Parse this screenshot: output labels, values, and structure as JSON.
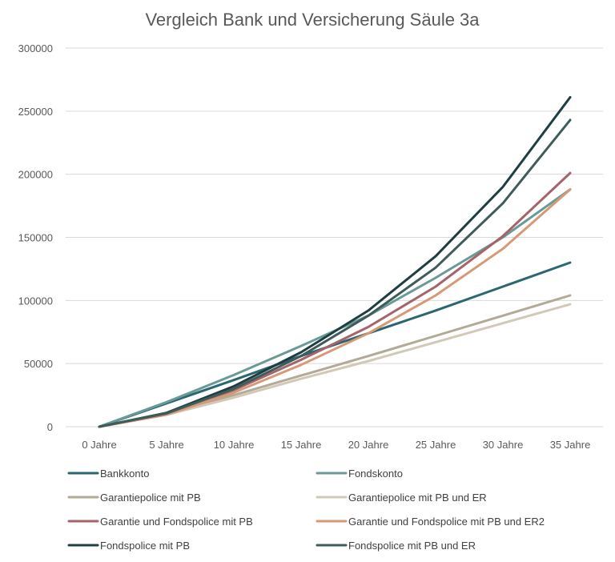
{
  "chart_data": {
    "type": "line",
    "title": "Vergleich Bank und Versicherung Säule 3a",
    "xlabel": "",
    "ylabel": "",
    "categories": [
      "0 Jahre",
      "5 Jahre",
      "10 Jahre",
      "15 Jahre",
      "20 Jahre",
      "25 Jahre",
      "30 Jahre",
      "35 Jahre"
    ],
    "ylim": [
      0,
      300000
    ],
    "yticks": [
      0,
      50000,
      100000,
      150000,
      200000,
      250000,
      300000
    ],
    "grid": true,
    "legend_position": "bottom",
    "series": [
      {
        "name": "Bankkonto",
        "color": "#2a6771",
        "values": [
          0,
          18500,
          37000,
          56000,
          74000,
          92000,
          111000,
          130000
        ]
      },
      {
        "name": "Fondskonto",
        "color": "#6a9a98",
        "values": [
          0,
          19500,
          41000,
          64000,
          88000,
          118000,
          150000,
          188000
        ]
      },
      {
        "name": "Garantiepolice mit PB",
        "color": "#b3a997",
        "values": [
          0,
          10500,
          25000,
          40500,
          56000,
          72000,
          88000,
          104000
        ]
      },
      {
        "name": "Garantiepolice mit PB und ER",
        "color": "#d2c8b8",
        "values": [
          0,
          9500,
          23000,
          38000,
          52000,
          67000,
          82000,
          97000
        ]
      },
      {
        "name": "Garantie und Fondspolice mit PB",
        "color": "#a5636a",
        "values": [
          0,
          10500,
          29000,
          53000,
          79000,
          111000,
          151000,
          201000
        ]
      },
      {
        "name": "Garantie und Fondspolice mit PB und ER2",
        "color": "#d69976",
        "values": [
          0,
          9500,
          27000,
          49000,
          74000,
          104000,
          141000,
          188000
        ]
      },
      {
        "name": "Fondspolice mit PB",
        "color": "#1f3e42",
        "values": [
          0,
          11000,
          32000,
          59000,
          92000,
          135000,
          190000,
          261000
        ]
      },
      {
        "name": "Fondspolice mit PB und ER",
        "color": "#3f5b5a",
        "values": [
          0,
          10500,
          30000,
          56000,
          88000,
          126000,
          177000,
          243000
        ]
      }
    ]
  }
}
